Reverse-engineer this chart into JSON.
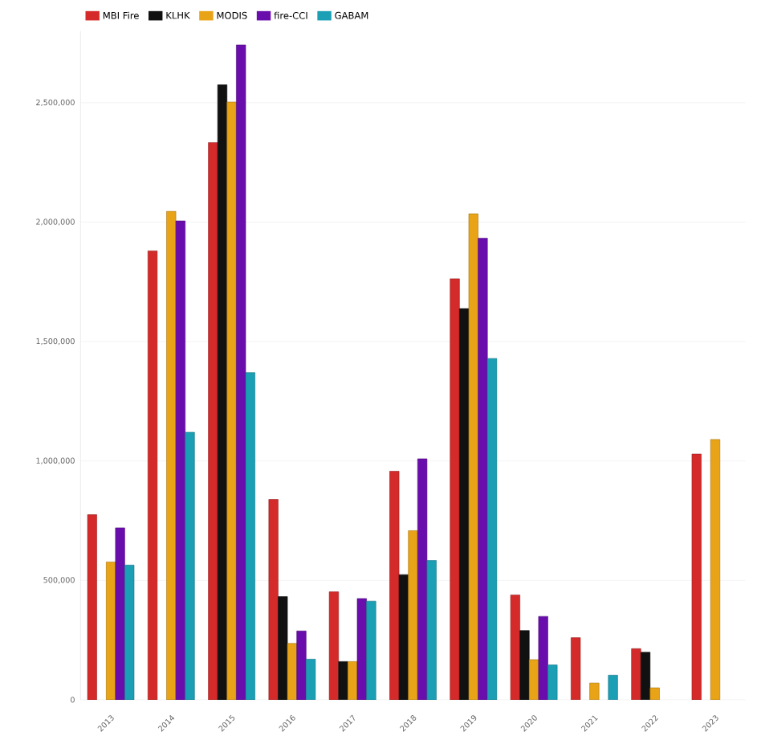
{
  "chart_data": {
    "type": "bar",
    "categories": [
      "2013",
      "2014",
      "2015",
      "2016",
      "2017",
      "2018",
      "2019",
      "2020",
      "2021",
      "2022",
      "2023"
    ],
    "series": [
      {
        "name": "MBI Fire",
        "color": "#d42a2a",
        "values": [
          775000,
          1880000,
          2333000,
          839000,
          452000,
          957000,
          1763000,
          439000,
          260000,
          214000,
          1029000
        ]
      },
      {
        "name": "KLHK",
        "color": "#111111",
        "values": [
          null,
          null,
          2575000,
          432000,
          160000,
          524000,
          1638000,
          290000,
          null,
          199000,
          null
        ]
      },
      {
        "name": "MODIS",
        "color": "#e8a317",
        "values": [
          577000,
          2045000,
          2503000,
          236000,
          160000,
          708000,
          2035000,
          168000,
          70000,
          50000,
          1090000
        ]
      },
      {
        "name": "fire-CCI",
        "color": "#6a0dad",
        "values": [
          720000,
          2005000,
          2742000,
          288000,
          424000,
          1009000,
          1933000,
          349000,
          null,
          null,
          null
        ]
      },
      {
        "name": "GABAM",
        "color": "#1a9fb5",
        "values": [
          564000,
          1120000,
          1370000,
          170000,
          413000,
          583000,
          1429000,
          146000,
          103000,
          null,
          null
        ]
      }
    ],
    "ylim": [
      0,
      2800000
    ],
    "yticks": [
      0,
      {
        "value": 500000,
        "label": "500,000"
      },
      {
        "value": 1000000,
        "label": "1,000,000"
      },
      {
        "value": 1500000,
        "label": "1,500,000"
      },
      {
        "value": 2000000,
        "label": "2,000,000"
      },
      {
        "value": 2500000,
        "label": "2,500,000"
      }
    ],
    "grid": "y",
    "legend": "top left"
  }
}
